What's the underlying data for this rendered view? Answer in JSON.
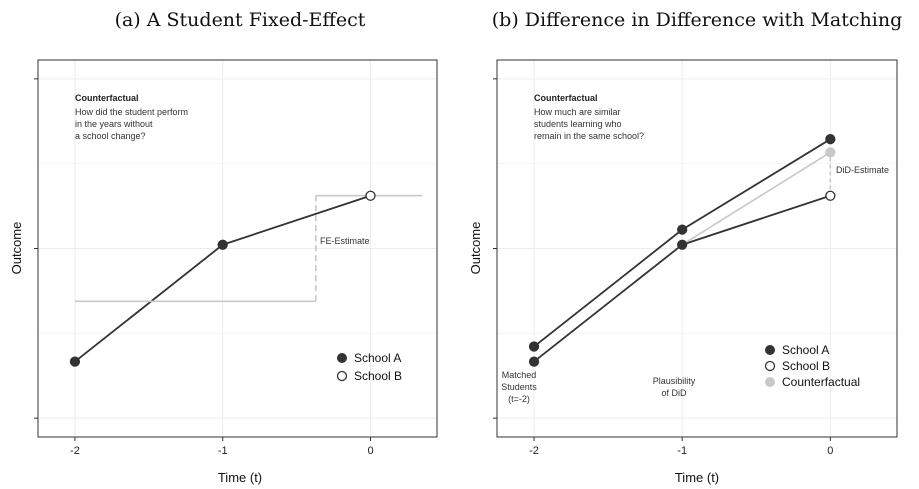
{
  "colors": {
    "school_a": "#333333",
    "school_b_fill": "#ffffff",
    "school_b_stroke": "#333333",
    "counterfactual": "#c8c8c8",
    "grid": "#ececec",
    "frame": "#333333"
  },
  "chart_data": [
    {
      "type": "line",
      "title": "(a) A Student Fixed-Effect",
      "xlabel": "Time (t)",
      "ylabel": "Outcome",
      "x_ticks": [
        "-2",
        "-1",
        "0"
      ],
      "xlim": [
        -2.25,
        0.45
      ],
      "ylim": [
        0,
        1
      ],
      "grid": true,
      "legend": {
        "position": "bottom-right",
        "entries": [
          {
            "label": "School A",
            "marker": "filled"
          },
          {
            "label": "School B",
            "marker": "open"
          }
        ]
      },
      "series": [
        {
          "name": "School A",
          "style": "solid-dark",
          "points": [
            {
              "x": -2,
              "y": 0.2
            },
            {
              "x": -1,
              "y": 0.51
            },
            {
              "x": 0,
              "y": 0.64
            }
          ],
          "markers": [
            "filled",
            "filled",
            "open"
          ]
        },
        {
          "name": "",
          "style": "step-gray",
          "points": [
            {
              "x": -2,
              "y": 0.36
            },
            {
              "x": -0.37,
              "y": 0.36
            },
            {
              "x": -0.37,
              "y": 0.64
            },
            {
              "x": 0.35,
              "y": 0.64
            }
          ]
        }
      ],
      "annotations": {
        "note_title": "Counterfactual",
        "note_lines": [
          "How did the student perform",
          "in the years without",
          "a school change?"
        ],
        "fe_label": "FE-Estimate"
      }
    },
    {
      "type": "line",
      "title": "(b) Difference in Difference with Matching",
      "xlabel": "Time (t)",
      "ylabel": "Outcome",
      "x_ticks": [
        "-2",
        "-1",
        "0"
      ],
      "xlim": [
        -2.25,
        0.45
      ],
      "ylim": [
        0,
        1
      ],
      "grid": true,
      "legend": {
        "position": "bottom-right",
        "entries": [
          {
            "label": "School A",
            "marker": "filled"
          },
          {
            "label": "School B",
            "marker": "open"
          },
          {
            "label": "Counterfactual",
            "marker": "gray"
          }
        ]
      },
      "series": [
        {
          "name": "School A",
          "style": "solid-dark",
          "points": [
            {
              "x": -2,
              "y": 0.24
            },
            {
              "x": -1,
              "y": 0.55
            },
            {
              "x": 0,
              "y": 0.79
            }
          ],
          "markers": [
            "filled",
            "filled",
            "filled"
          ]
        },
        {
          "name": "School B",
          "style": "solid-dark",
          "points": [
            {
              "x": -2,
              "y": 0.2
            },
            {
              "x": -1,
              "y": 0.51
            },
            {
              "x": 0,
              "y": 0.64
            }
          ],
          "markers": [
            "filled",
            "filled",
            "open"
          ]
        },
        {
          "name": "Counterfactual",
          "style": "solid-gray",
          "points": [
            {
              "x": -1,
              "y": 0.51
            },
            {
              "x": 0,
              "y": 0.755
            }
          ],
          "markers": [
            "none",
            "gray"
          ]
        }
      ],
      "annotations": {
        "note_title": "Counterfactual",
        "note_lines": [
          "How much are similar",
          "students learning who",
          "remain in the same school?"
        ],
        "did_label": "DiD-Estimate",
        "matched_lines": [
          "Matched",
          "Students",
          "(t=-2)"
        ],
        "plausibility_lines": [
          "Plausibility",
          "of DiD"
        ]
      }
    }
  ]
}
